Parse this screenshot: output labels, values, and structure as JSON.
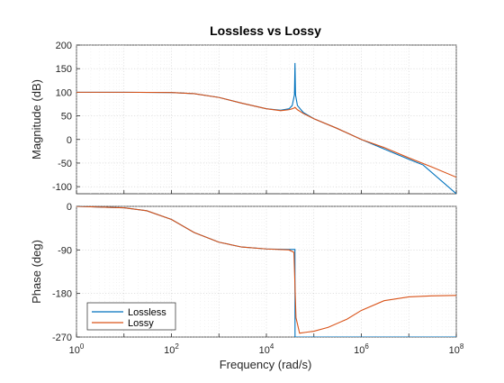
{
  "chart_data": {
    "type": "line",
    "title": "Lossless vs Lossy",
    "xlabel": "Frequency  (rad/s)",
    "xscale": "log",
    "xlim": [
      1,
      100000000
    ],
    "x_tick_labels": [
      "10^0",
      "10^2",
      "10^4",
      "10^6",
      "10^8"
    ],
    "grid": true,
    "legend_position": "bottom-left of phase plot",
    "panels": [
      {
        "name": "magnitude",
        "ylabel": "Magnitude (dB)",
        "ylim": [
          -115,
          200
        ],
        "yticks": [
          200,
          150,
          100,
          50,
          0,
          -50,
          -100
        ],
        "ytick_labels": [
          "200",
          "150",
          "100",
          "50",
          "0",
          "-50",
          "-100"
        ],
        "series": [
          {
            "name": "Lossless",
            "color": "#0072BD",
            "x": [
              1,
              10,
              100,
              300,
              1000,
              3000,
              10000,
              20000,
              30000,
              35000,
              39000,
              40000,
              41000,
              45000,
              60000,
              100000,
              300000,
              1000000,
              3000000,
              10000000,
              20000000,
              100000000
            ],
            "y": [
              100,
              100,
              99.5,
              97,
              89,
              77,
              65,
              62,
              65,
              72,
              95,
              162,
              95,
              72,
              57,
              44,
              24,
              0,
              -20,
              -42,
              -54,
              -115
            ]
          },
          {
            "name": "Lossy",
            "color": "#D95319",
            "x": [
              1,
              10,
              100,
              300,
              1000,
              3000,
              10000,
              20000,
              30000,
              35000,
              39000,
              40000,
              41000,
              45000,
              60000,
              100000,
              300000,
              1000000,
              3000000,
              10000000,
              30000000,
              100000000
            ],
            "y": [
              100,
              100,
              99.5,
              97,
              89,
              77,
              65,
              61,
              63,
              65,
              67,
              68,
              67,
              63,
              55,
              44,
              24,
              0,
              -17,
              -39,
              -58,
              -80
            ]
          }
        ]
      },
      {
        "name": "phase",
        "ylabel": "Phase (deg)",
        "ylim": [
          -270,
          0
        ],
        "yticks": [
          0,
          -90,
          -180,
          -270
        ],
        "ytick_labels": [
          "0",
          "-90",
          "-180",
          "-270"
        ],
        "series": [
          {
            "name": "Lossless",
            "color": "#0072BD",
            "x": [
              1,
              10,
              30,
              100,
              300,
              1000,
              3000,
              10000,
              30000,
              39900,
              40000,
              40100,
              100000,
              1000000,
              100000000
            ],
            "y": [
              0,
              -3,
              -9,
              -27,
              -54,
              -74,
              -84,
              -88,
              -89,
              -89,
              -180,
              -270,
              -270,
              -270,
              -270
            ]
          },
          {
            "name": "Lossy",
            "color": "#D95319",
            "x": [
              1,
              10,
              30,
              100,
              300,
              1000,
              3000,
              10000,
              30000,
              38000,
              42000,
              50000,
              70000,
              100000,
              200000,
              500000,
              1000000,
              3000000,
              10000000,
              30000000,
              100000000
            ],
            "y": [
              0,
              -3,
              -9,
              -27,
              -54,
              -74,
              -84,
              -88,
              -90,
              -95,
              -230,
              -262,
              -260,
              -258,
              -250,
              -233,
              -215,
              -195,
              -187,
              -185,
              -184
            ]
          }
        ]
      }
    ]
  }
}
